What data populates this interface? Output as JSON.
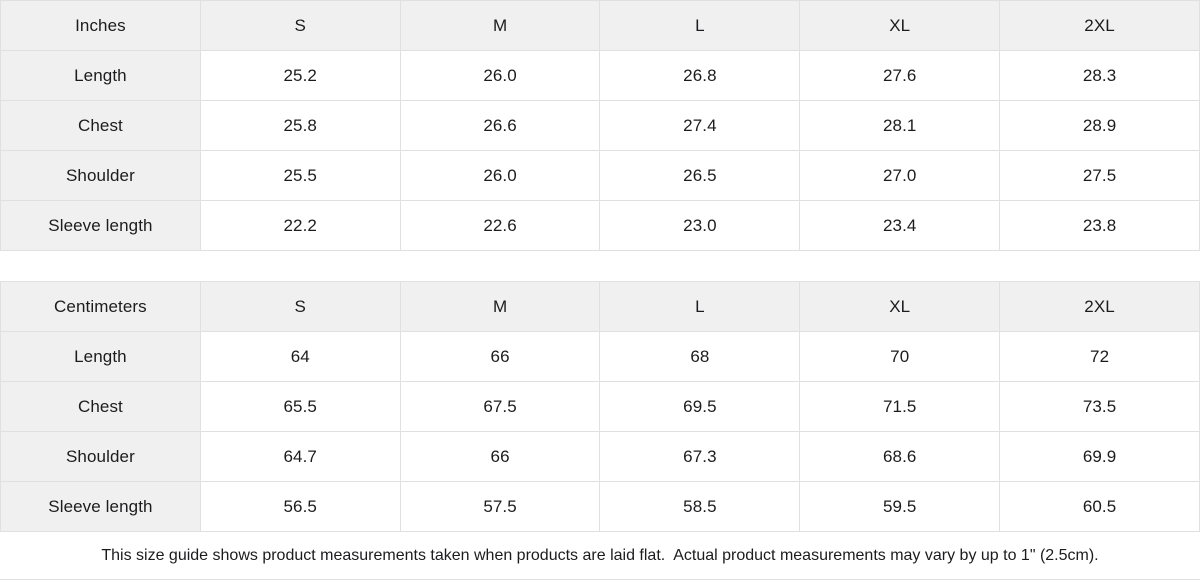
{
  "theme": {
    "header_bg": "#f0f0f0",
    "border_color": "#e0e0e0",
    "text_color": "#1c1c1e",
    "background": "#ffffff"
  },
  "tables": [
    {
      "unit_label": "Inches",
      "columns": [
        "S",
        "M",
        "L",
        "XL",
        "2XL"
      ],
      "rows": [
        {
          "label": "Length",
          "values": [
            "25.2",
            "26.0",
            "26.8",
            "27.6",
            "28.3"
          ]
        },
        {
          "label": "Chest",
          "values": [
            "25.8",
            "26.6",
            "27.4",
            "28.1",
            "28.9"
          ]
        },
        {
          "label": "Shoulder",
          "values": [
            "25.5",
            "26.0",
            "26.5",
            "27.0",
            "27.5"
          ]
        },
        {
          "label": "Sleeve length",
          "values": [
            "22.2",
            "22.6",
            "23.0",
            "23.4",
            "23.8"
          ]
        }
      ]
    },
    {
      "unit_label": "Centimeters",
      "columns": [
        "S",
        "M",
        "L",
        "XL",
        "2XL"
      ],
      "rows": [
        {
          "label": "Length",
          "values": [
            "64",
            "66",
            "68",
            "70",
            "72"
          ]
        },
        {
          "label": "Chest",
          "values": [
            "65.5",
            "67.5",
            "69.5",
            "71.5",
            "73.5"
          ]
        },
        {
          "label": "Shoulder",
          "values": [
            "64.7",
            "66",
            "67.3",
            "68.6",
            "69.9"
          ]
        },
        {
          "label": "Sleeve length",
          "values": [
            "56.5",
            "57.5",
            "58.5",
            "59.5",
            "60.5"
          ]
        }
      ]
    }
  ],
  "footer": {
    "note": "This size guide shows product measurements taken when products are laid flat.  Actual product measurements may vary by up to 1\" (2.5cm)."
  }
}
